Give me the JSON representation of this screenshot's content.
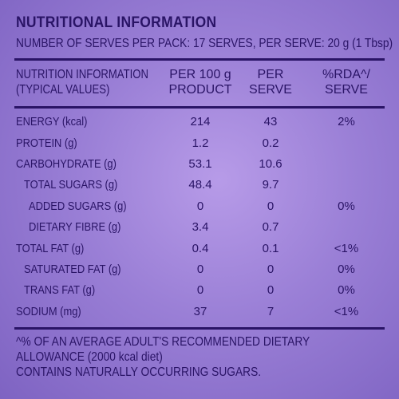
{
  "label": {
    "title": "NUTRITIONAL INFORMATION",
    "serves_line": "NUMBER OF SERVES PER PACK: 17 SERVES, PER SERVE: 20 g (1 Tbsp)",
    "header": {
      "col1_line1": "NUTRITION INFORMATION",
      "col1_line2": "(TYPICAL VALUES)",
      "col2_line1": "PER 100 g",
      "col2_line2": "PRODUCT",
      "col3_line1": "PER",
      "col3_line2": "SERVE",
      "col4_line1": "%RDA^/",
      "col4_line2": "SERVE"
    },
    "rows": [
      {
        "name": "ENERGY (kcal)",
        "per100": "214",
        "perServe": "43",
        "rda": "2%"
      },
      {
        "name": "PROTEIN (g)",
        "per100": "1.2",
        "perServe": "0.2",
        "rda": ""
      },
      {
        "name": "CARBOHYDRATE (g)",
        "per100": "53.1",
        "perServe": "10.6",
        "rda": ""
      },
      {
        "name": "TOTAL SUGARS (g)",
        "per100": "48.4",
        "perServe": "9.7",
        "rda": ""
      },
      {
        "name": "ADDED SUGARS (g)",
        "per100": "0",
        "perServe": "0",
        "rda": "0%"
      },
      {
        "name": "DIETARY FIBRE (g)",
        "per100": "3.4",
        "perServe": "0.7",
        "rda": ""
      },
      {
        "name": "TOTAL FAT (g)",
        "per100": "0.4",
        "perServe": "0.1",
        "rda": "<1%"
      },
      {
        "name": "SATURATED FAT (g)",
        "per100": "0",
        "perServe": "0",
        "rda": "0%"
      },
      {
        "name": "TRANS FAT (g)",
        "per100": "0",
        "perServe": "0",
        "rda": "0%"
      },
      {
        "name": "SODIUM (mg)",
        "per100": "37",
        "perServe": "7",
        "rda": "<1%"
      }
    ],
    "footnote_line1": "^% OF AN AVERAGE ADULT'S RECOMMENDED DIETARY",
    "footnote_line2": "ALLOWANCE (2000 kcal diet)",
    "footnote_line3": "CONTAINS NATURALLY OCCURRING SUGARS."
  }
}
